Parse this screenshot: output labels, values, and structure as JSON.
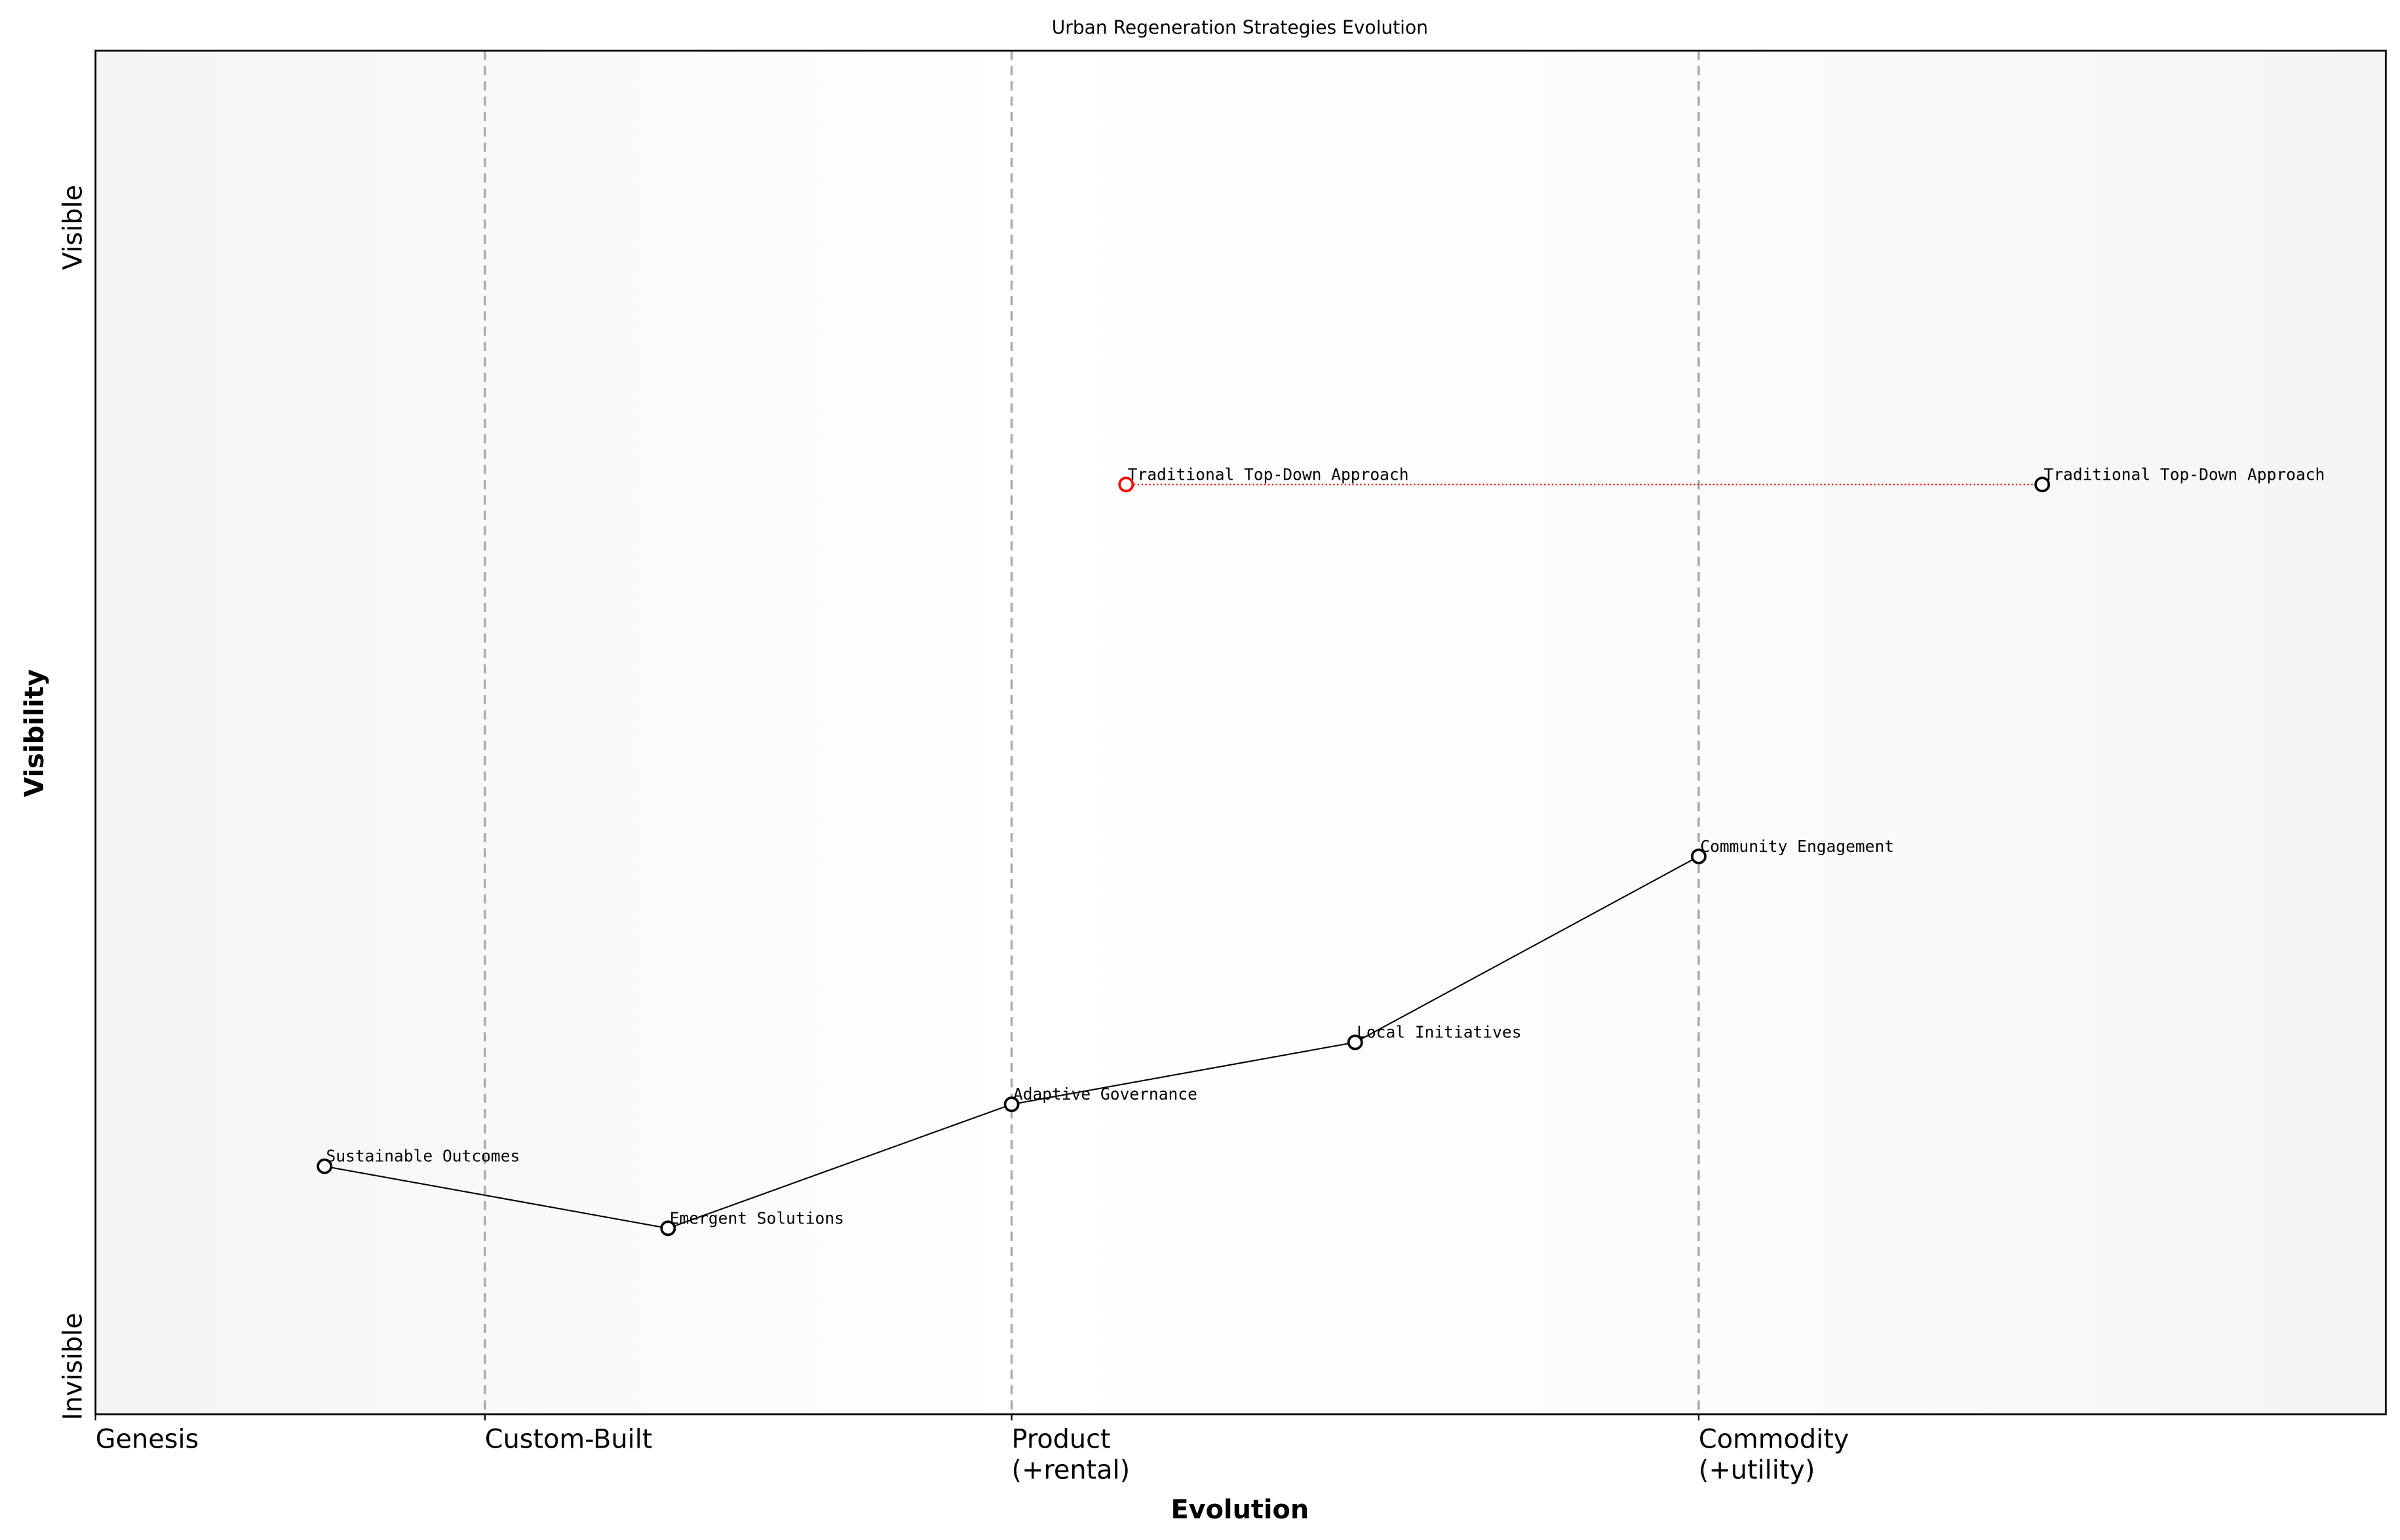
{
  "chart_data": {
    "type": "scatter",
    "title": "Urban Regeneration Strategies Evolution",
    "xlabel": "Evolution",
    "ylabel": "Visibility",
    "xlim": [
      0,
      1
    ],
    "ylim": [
      0,
      1.1
    ],
    "x_ticks": [
      {
        "value": 0,
        "label": "Genesis"
      },
      {
        "value": 0.17,
        "label": "Custom-Built"
      },
      {
        "value": 0.4,
        "label": "Product\n(+rental)"
      },
      {
        "value": 0.7,
        "label": "Commodity\n(+utility)"
      }
    ],
    "y_ticks": [
      {
        "label": "Invisible"
      },
      {
        "label": "Visible"
      }
    ],
    "stage_dividers": [
      0.17,
      0.4,
      0.7
    ],
    "components": [
      {
        "name": "Sustainable Outcomes",
        "x": 0.1,
        "y": 0.2
      },
      {
        "name": "Emergent Solutions",
        "x": 0.25,
        "y": 0.15
      },
      {
        "name": "Adaptive Governance",
        "x": 0.4,
        "y": 0.25
      },
      {
        "name": "Local Initiatives",
        "x": 0.55,
        "y": 0.3
      },
      {
        "name": "Community Engagement",
        "x": 0.7,
        "y": 0.45
      },
      {
        "name": "Traditional Top-Down Approach",
        "x": 0.45,
        "y": 0.75,
        "color": "#ff0000"
      },
      {
        "name": "Traditional Top-Down Approach",
        "x": 0.85,
        "y": 0.75
      }
    ],
    "links": [
      [
        0,
        1
      ],
      [
        1,
        2
      ],
      [
        2,
        3
      ],
      [
        3,
        4
      ]
    ],
    "evolution_links": [
      {
        "from": 5,
        "to": 6,
        "color": "#ff0000",
        "style": "dotted"
      }
    ],
    "grid": false
  }
}
